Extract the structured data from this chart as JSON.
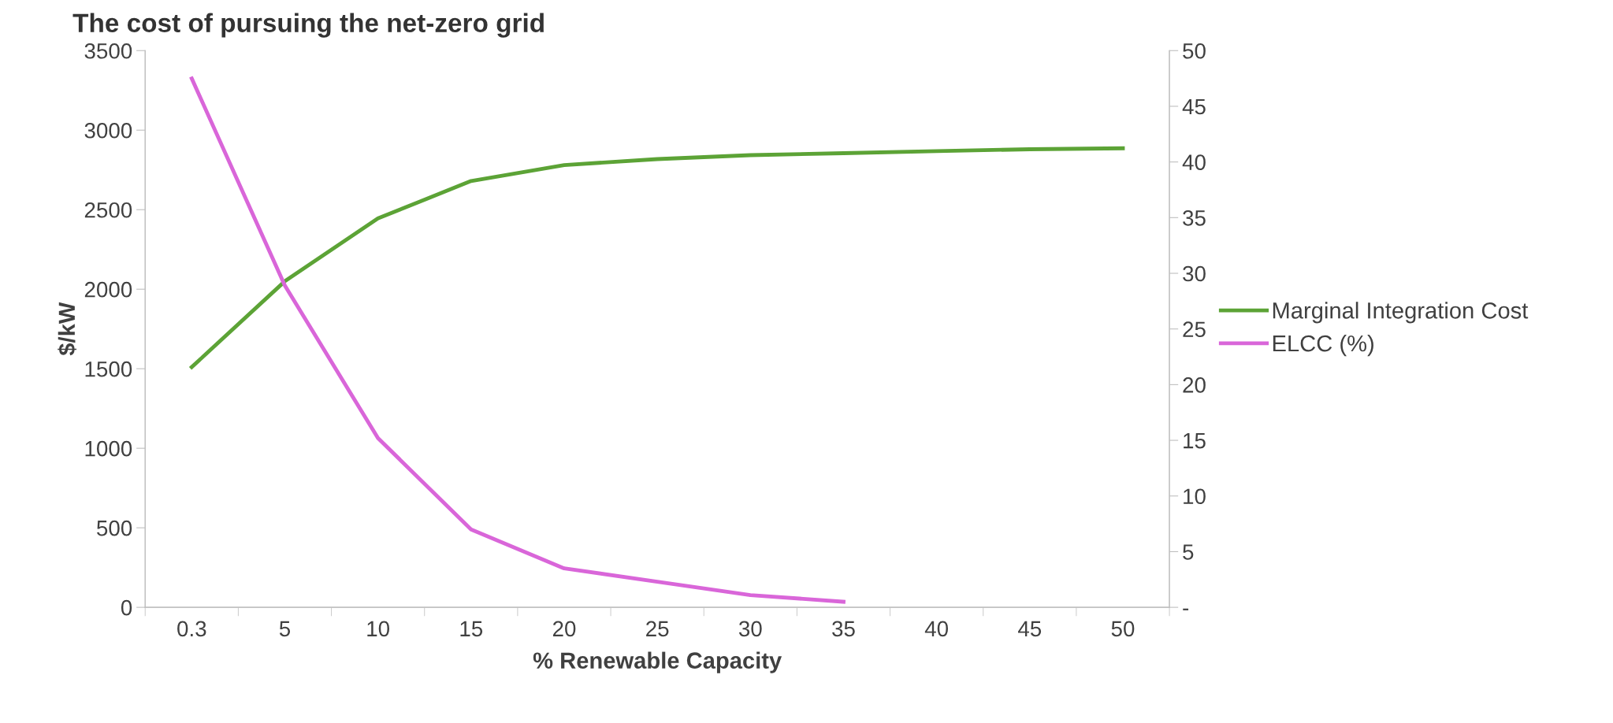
{
  "chart_data": {
    "type": "line",
    "title": "The cost of pursuing the net-zero grid",
    "xlabel": "% Renewable Capacity",
    "ylabel": "$/kW",
    "categories": [
      "0.3",
      "5",
      "10",
      "15",
      "20",
      "25",
      "30",
      "35",
      "40",
      "45",
      "50"
    ],
    "series": [
      {
        "name": "Marginal Integration Cost",
        "color": "#5ca336",
        "values": [
          1510,
          2050,
          2445,
          2680,
          2780,
          2818,
          2843,
          2855,
          2868,
          2880,
          2886
        ]
      },
      {
        "name": "ELCC (%)",
        "color": "#d966d9",
        "axis": "y2",
        "values": [
          47.5,
          28.9,
          15.2,
          7.0,
          3.5,
          2.3,
          1.1,
          0.5,
          null,
          null,
          null
        ]
      }
    ],
    "ylim": [
      0,
      3500
    ],
    "yticks": [
      0,
      500,
      1000,
      1500,
      2000,
      2500,
      3000,
      3500
    ],
    "y2lim": [
      0,
      50
    ],
    "y2ticks": [
      {
        "value": 0,
        "label": "-"
      },
      5,
      10,
      15,
      20,
      25,
      30,
      35,
      40,
      45,
      50
    ],
    "grid": false,
    "legend": "right"
  }
}
